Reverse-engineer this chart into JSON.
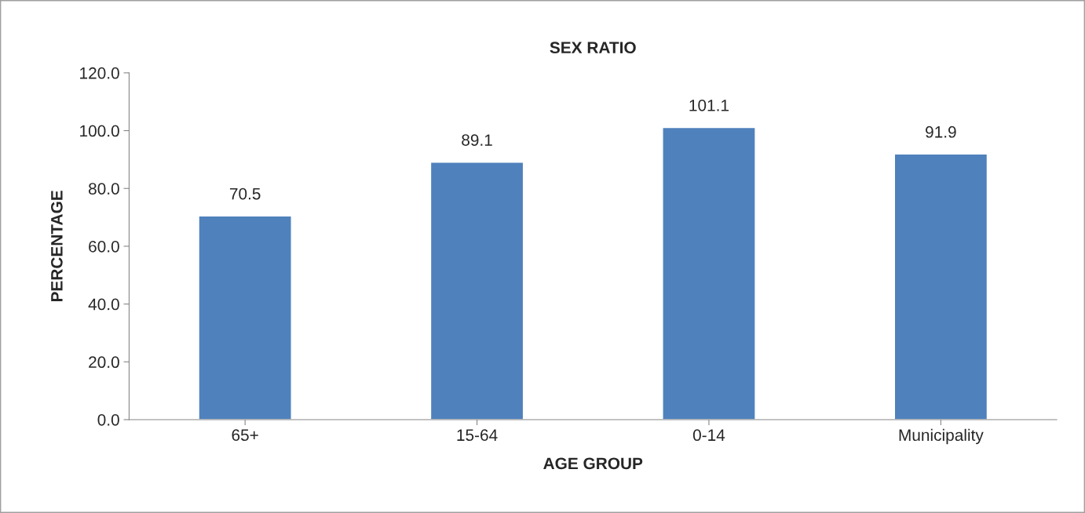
{
  "chart_data": {
    "type": "bar",
    "title": "SEX RATIO",
    "xlabel": "AGE GROUP",
    "ylabel": "PERCENTAGE",
    "categories": [
      "65+",
      "15-64",
      "0-14",
      "Municipality"
    ],
    "values": [
      70.5,
      89.1,
      101.1,
      91.9
    ],
    "color": "#4f81bd",
    "ylim": [
      0,
      120
    ],
    "yticks": [
      {
        "value": 0,
        "label": "0.0"
      },
      {
        "value": 20,
        "label": "20.0"
      },
      {
        "value": 40,
        "label": "40.0"
      },
      {
        "value": 60,
        "label": "60.0"
      },
      {
        "value": 80,
        "label": "80.0"
      },
      {
        "value": 100,
        "label": "100.0"
      },
      {
        "value": 120,
        "label": "120.0"
      }
    ],
    "grid": false,
    "legend": false,
    "data_labels": true
  }
}
